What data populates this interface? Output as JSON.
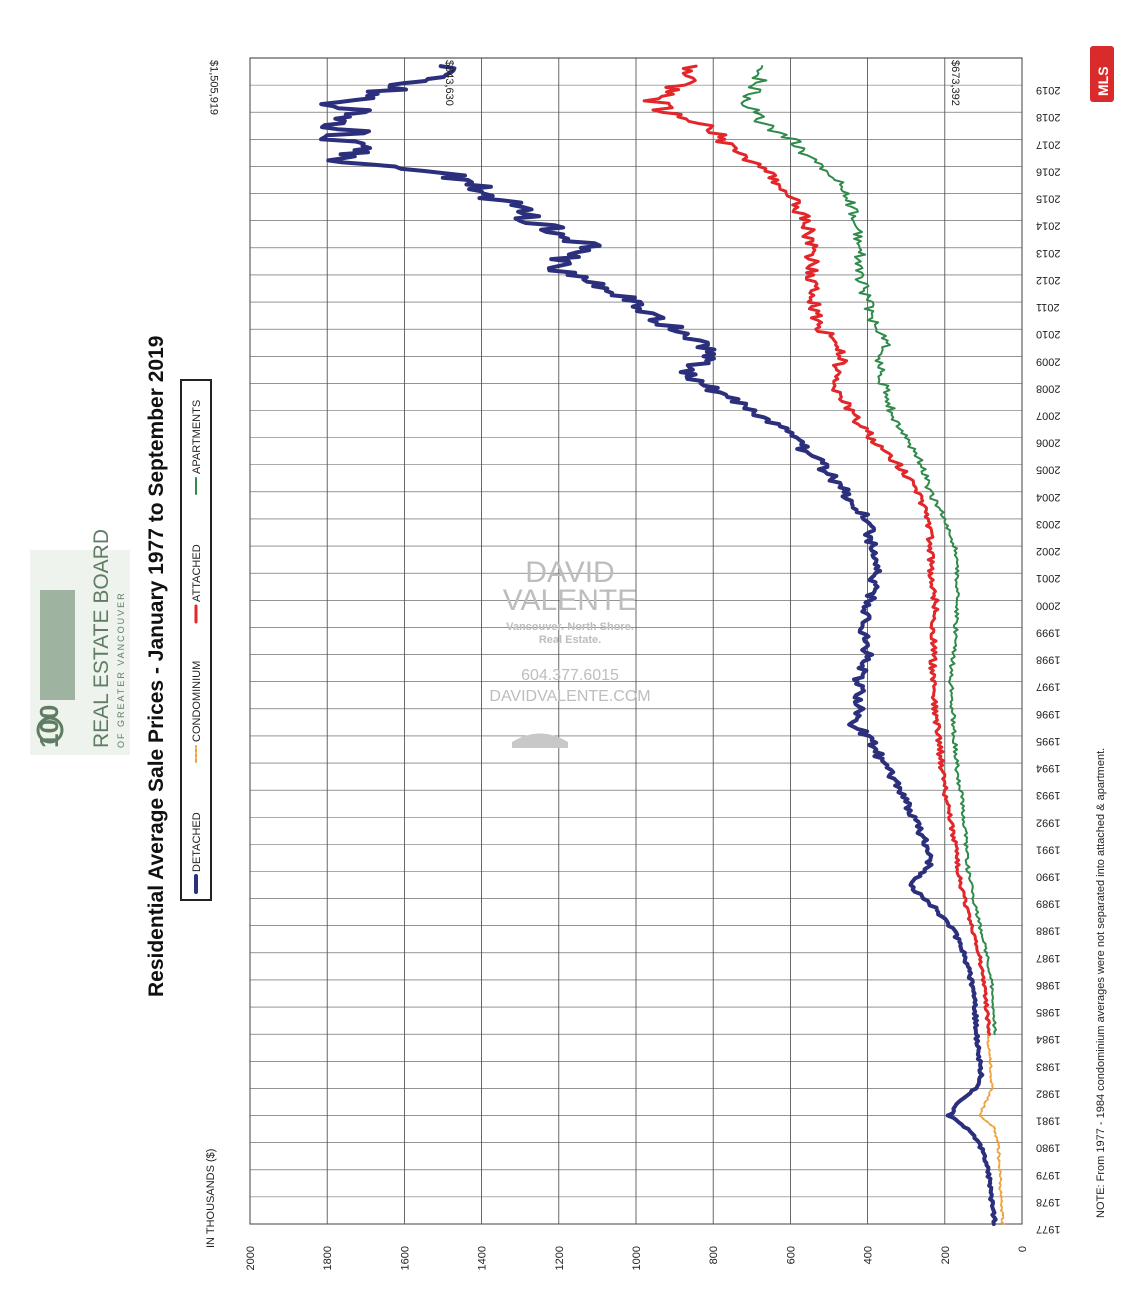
{
  "header": {
    "board_name": "REAL ESTATE BOARD",
    "board_sub": "OF GREATER VANCOUVER",
    "badge": "100",
    "mls": "MLS"
  },
  "watermark": {
    "line1": "DAVID",
    "line2": "VALENTE",
    "tagline1": "Vancouver. North Shore.",
    "tagline2": "Real Estate.",
    "phone": "604.377.6015",
    "web": "DAVIDVALENTE.COM"
  },
  "note": "NOTE: From 1977 - 1984 condominium averages were not separated into attached & apartment.",
  "chart_data": {
    "type": "line",
    "title": "Residential Average Sale Prices  -  January 1977 to September 2019",
    "ylabel": "IN THOUSANDS ($)",
    "ylim": [
      0,
      2000
    ],
    "yticks": [
      0,
      200,
      400,
      600,
      800,
      1000,
      1200,
      1400,
      1600,
      1800,
      2000
    ],
    "xlim": [
      1977,
      2020
    ],
    "xticks": [
      1977,
      1978,
      1979,
      1980,
      1981,
      1982,
      1983,
      1984,
      1985,
      1986,
      1987,
      1988,
      1989,
      1990,
      1991,
      1992,
      1993,
      1994,
      1995,
      1996,
      1997,
      1998,
      1999,
      2000,
      2001,
      2002,
      2003,
      2004,
      2005,
      2006,
      2007,
      2008,
      2009,
      2010,
      2011,
      2012,
      2013,
      2014,
      2015,
      2016,
      2017,
      2018,
      2019
    ],
    "grid": true,
    "legend_position": "top",
    "annotations": [
      {
        "text": "$1,505,919",
        "series": "DETACHED"
      },
      {
        "text": "$843,630",
        "series": "ATTACHED"
      },
      {
        "text": "$673,392",
        "series": "APARTMENTS"
      }
    ],
    "series": [
      {
        "name": "DETACHED",
        "color": "#2b2f7c",
        "width": 4,
        "x": [
          1977,
          1978,
          1979,
          1980,
          1980.5,
          1981,
          1981.5,
          1982,
          1982.5,
          1983,
          1984,
          1985,
          1986,
          1987,
          1988,
          1989,
          1989.5,
          1990,
          1990.5,
          1991,
          1992,
          1993,
          1994,
          1995,
          1995.5,
          1996,
          1997,
          1998,
          1999,
          2000,
          2001,
          2002,
          2003,
          2004,
          2005,
          2006,
          2006.5,
          2007,
          2007.5,
          2008,
          2008.5,
          2009,
          2009.5,
          2010,
          2010.5,
          2011,
          2011.5,
          2012,
          2012.5,
          2013,
          2013.5,
          2014,
          2014.5,
          2015,
          2015.5,
          2016,
          2016.3,
          2016.6,
          2017,
          2017.3,
          2017.6,
          2018,
          2018.3,
          2018.6,
          2019,
          2019.3,
          2019.7
        ],
        "y": [
          70,
          80,
          88,
          110,
          140,
          190,
          160,
          120,
          105,
          110,
          118,
          122,
          132,
          150,
          185,
          250,
          290,
          250,
          235,
          250,
          280,
          315,
          360,
          400,
          440,
          420,
          425,
          400,
          415,
          395,
          380,
          390,
          400,
          460,
          520,
          600,
          640,
          700,
          760,
          840,
          880,
          800,
          820,
          900,
          960,
          1000,
          1090,
          1180,
          1200,
          1120,
          1180,
          1260,
          1320,
          1380,
          1420,
          1620,
          1800,
          1700,
          1770,
          1720,
          1800,
          1700,
          1780,
          1640,
          1650,
          1530,
          1506
        ]
      },
      {
        "name": "CONDOMINIUM",
        "color": "#f0a23c",
        "width": 2,
        "dashed": true,
        "x": [
          1977,
          1978,
          1979,
          1980,
          1980.5,
          1981,
          1981.5,
          1982,
          1982.5,
          1983,
          1984
        ],
        "y": [
          50,
          55,
          58,
          62,
          70,
          110,
          95,
          78,
          80,
          82,
          90
        ]
      },
      {
        "name": "ATTACHED",
        "color": "#e2262a",
        "width": 3,
        "x": [
          1984,
          1985,
          1986,
          1987,
          1988,
          1989,
          1990,
          1991,
          1992,
          1993,
          1994,
          1995,
          1996,
          1997,
          1998,
          1999,
          2000,
          2001,
          2002,
          2003,
          2004,
          2005,
          2006,
          2006.5,
          2007,
          2007.5,
          2008,
          2009,
          2009.5,
          2010,
          2011,
          2012,
          2013,
          2014,
          2014.5,
          2015,
          2015.5,
          2016,
          2016.5,
          2017,
          2017.5,
          2018,
          2018.5,
          2019,
          2019.7
        ],
        "y": [
          85,
          92,
          100,
          112,
          130,
          150,
          165,
          175,
          185,
          200,
          210,
          215,
          225,
          232,
          230,
          228,
          225,
          235,
          238,
          240,
          270,
          320,
          390,
          420,
          450,
          470,
          500,
          460,
          480,
          520,
          540,
          540,
          545,
          560,
          580,
          600,
          640,
          680,
          720,
          780,
          800,
          920,
          960,
          880,
          844
        ]
      },
      {
        "name": "APARTMENTS",
        "color": "#2e8b4a",
        "width": 2,
        "x": [
          1984,
          1985,
          1986,
          1987,
          1988,
          1989,
          1990,
          1991,
          1992,
          1993,
          1994,
          1995,
          1996,
          1997,
          1998,
          1999,
          2000,
          2001,
          2002,
          2003,
          2004,
          2005,
          2006,
          2007,
          2008,
          2009,
          2009.5,
          2010,
          2011,
          2012,
          2013,
          2014,
          2015,
          2015.5,
          2016,
          2016.5,
          2017,
          2017.5,
          2018,
          2018.5,
          2019,
          2019.7
        ],
        "y": [
          70,
          75,
          80,
          92,
          110,
          125,
          140,
          145,
          150,
          160,
          170,
          175,
          180,
          185,
          178,
          172,
          165,
          168,
          175,
          200,
          240,
          260,
          300,
          340,
          360,
          370,
          350,
          380,
          400,
          420,
          420,
          430,
          450,
          470,
          520,
          560,
          600,
          660,
          700,
          720,
          680,
          673
        ]
      }
    ]
  }
}
